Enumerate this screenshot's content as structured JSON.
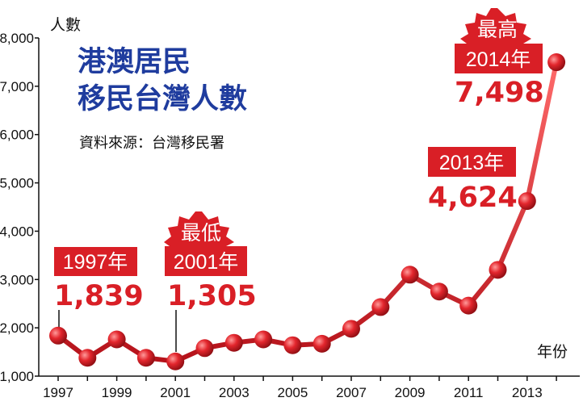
{
  "title_line1": "港澳居民",
  "title_line2": "移民台灣人數",
  "source": "資料來源：台灣移民署",
  "y_unit": "人數",
  "x_unit": "年份",
  "colors": {
    "line": "#e0242b",
    "label_bg": "#d91f26",
    "value_text": "#d91f26",
    "title": "#1f3c9e"
  },
  "chart_data": {
    "type": "line",
    "x": [
      1997,
      1998,
      1999,
      2000,
      2001,
      2002,
      2003,
      2004,
      2005,
      2006,
      2007,
      2008,
      2009,
      2010,
      2011,
      2012,
      2013,
      2014
    ],
    "values": [
      1839,
      1380,
      1760,
      1380,
      1305,
      1580,
      1690,
      1760,
      1640,
      1670,
      1980,
      2430,
      3100,
      2750,
      2460,
      3200,
      4624,
      7498
    ],
    "ylim": [
      1000,
      8000
    ],
    "yticks": [
      "1,000",
      "2,000",
      "3,000",
      "4,000",
      "5,000",
      "6,000",
      "7,000",
      "8,000"
    ],
    "xticks": [
      "1997",
      "1999",
      "2001",
      "2003",
      "2005",
      "2007",
      "2009",
      "2011",
      "2013"
    ],
    "ylabel": "人數",
    "xlabel": "年份",
    "grid": false
  },
  "callouts": {
    "y1997": {
      "label": "1997年",
      "value": "1,839"
    },
    "y2001": {
      "badge": "最低",
      "label": "2001年",
      "value": "1,305"
    },
    "y2013": {
      "label": "2013年",
      "value": "4,624"
    },
    "y2014": {
      "badge": "最高",
      "label": "2014年",
      "value": "7,498"
    }
  }
}
